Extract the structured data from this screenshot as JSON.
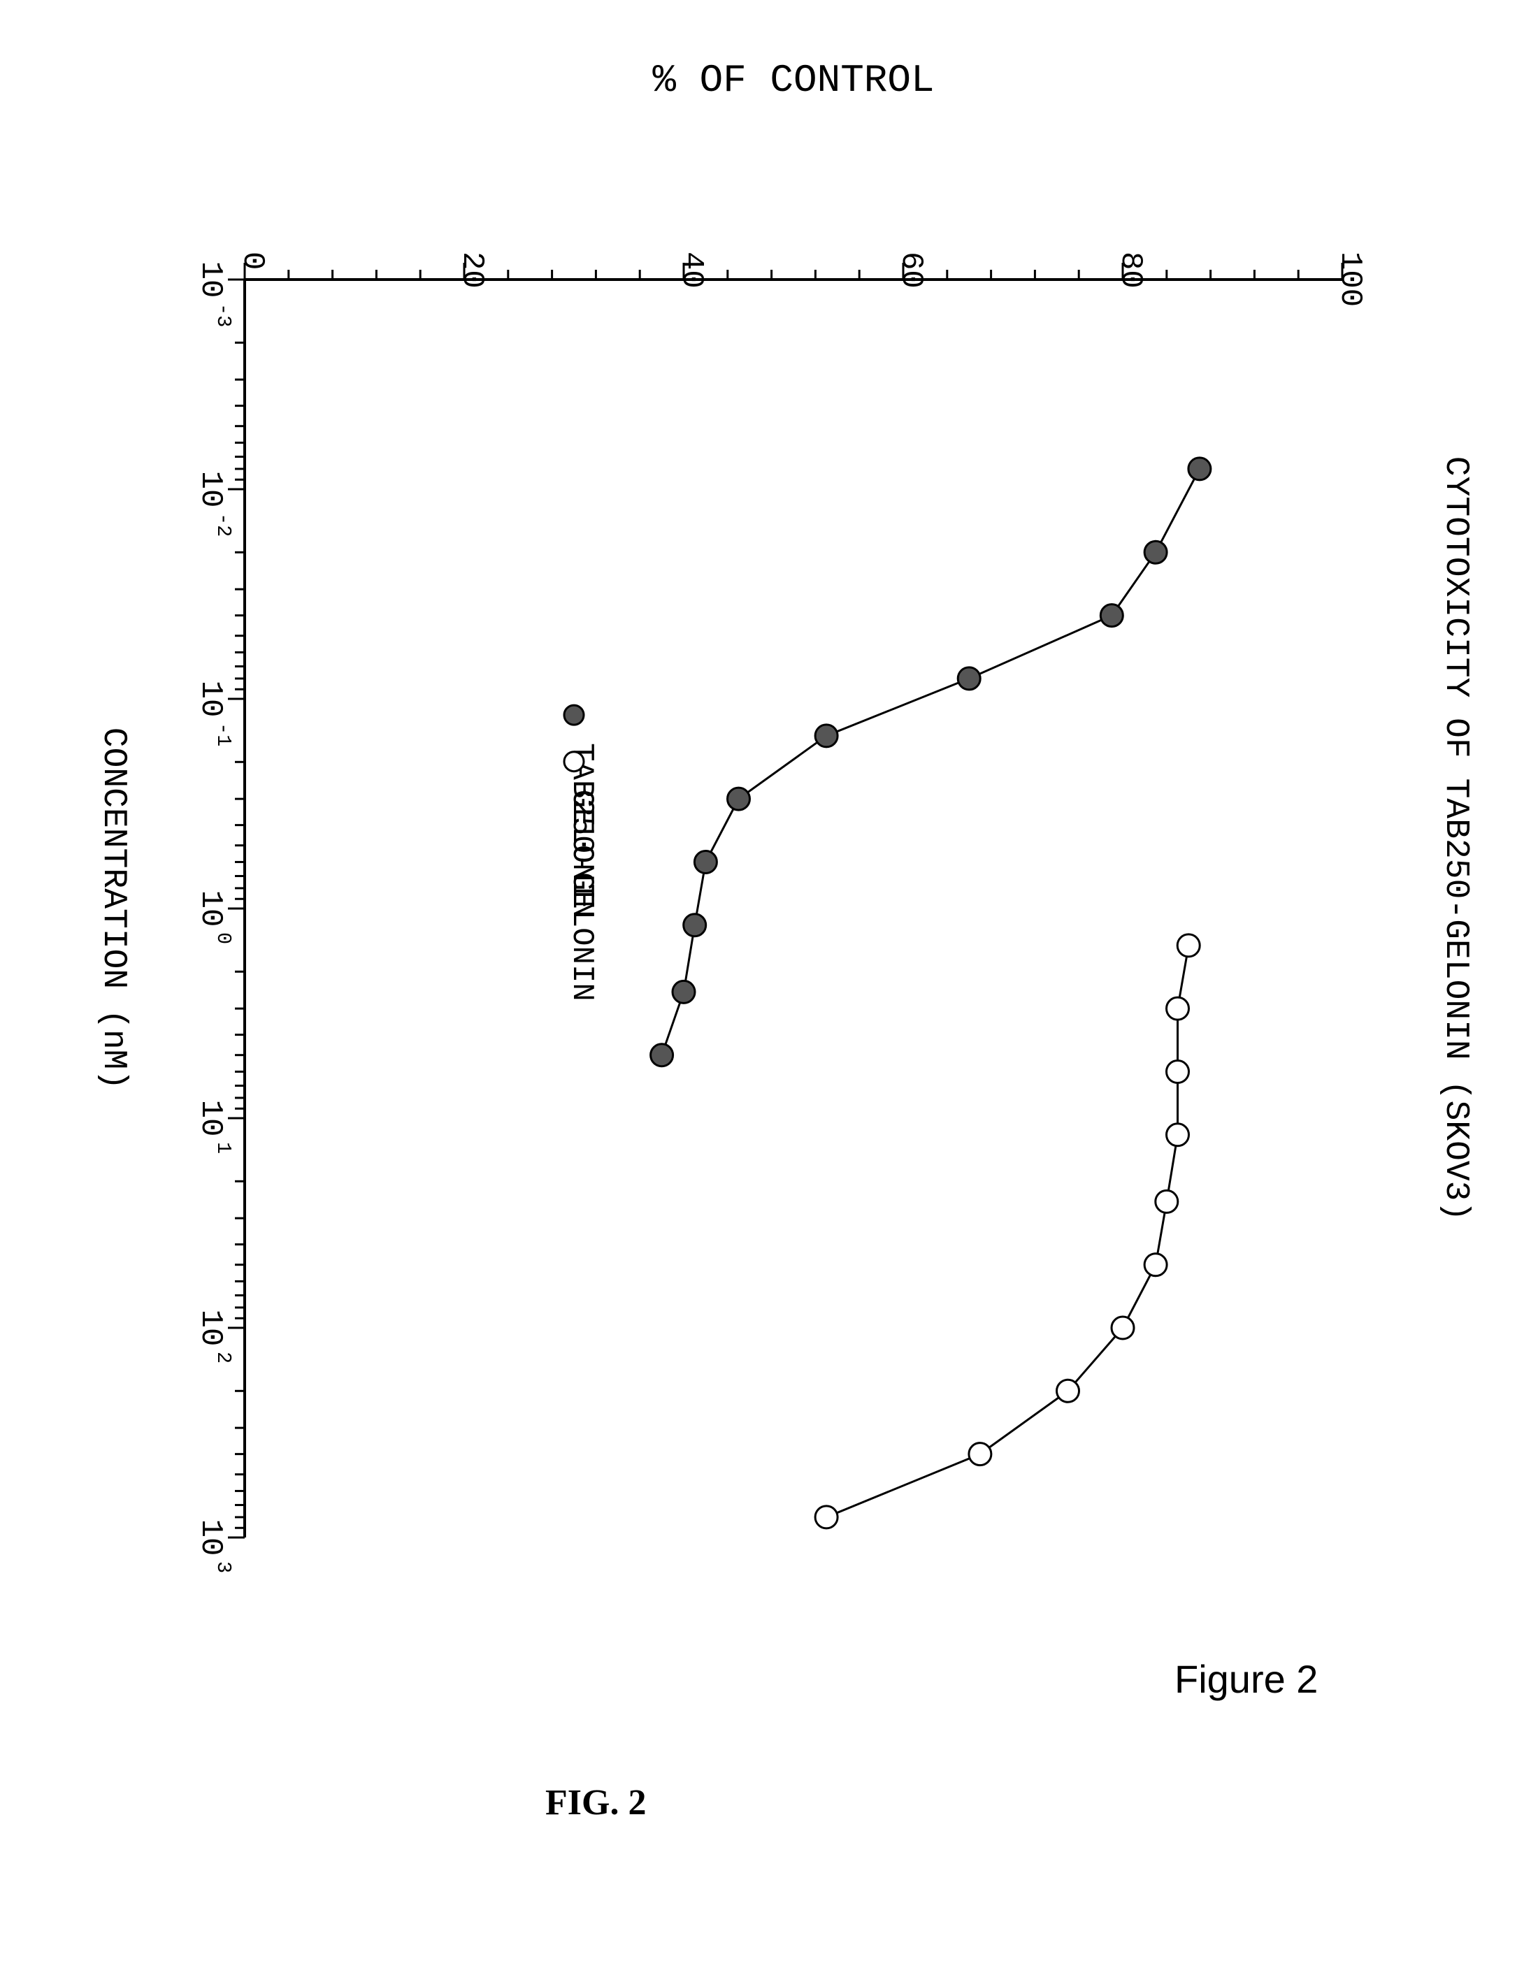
{
  "figure": {
    "title": "CYTOTOXICITY OF TAB250-GELONIN (SKOV3)",
    "xlabel": "CONCENTRATION (nM)",
    "ylabel": "% OF CONTROL",
    "title_fontsize": 48,
    "label_fontsize": 48,
    "tick_fontsize": 44,
    "background_color": "#ffffff",
    "axis_color": "#000000",
    "grid_color": "#e0e0e0",
    "x_scale": "log",
    "xlim": [
      0.001,
      1000
    ],
    "ylim": [
      0,
      100
    ],
    "ytick_step": 20,
    "yticks": [
      0,
      20,
      40,
      60,
      80,
      100
    ],
    "xtick_labels": [
      "10-3",
      "10-2",
      "10-1",
      "100",
      "101",
      "102",
      "103"
    ],
    "xtick_exponents": [
      -3,
      -2,
      -1,
      0,
      1,
      2,
      3
    ],
    "legend": {
      "items": [
        {
          "label": "TAB250-GELONIN",
          "marker": "filled-circle",
          "marker_color": "#555555"
        },
        {
          "label": "GELONIN",
          "marker": "open-circle",
          "marker_color": "#ffffff"
        }
      ],
      "fontsize": 44
    },
    "series": [
      {
        "name": "TAB250-GELONIN",
        "marker": "filled-circle",
        "marker_size": 16,
        "marker_fill": "#555555",
        "line_color": "#000000",
        "line_width": 3,
        "x": [
          0.008,
          0.02,
          0.04,
          0.08,
          0.15,
          0.3,
          0.6,
          1.2,
          2.5,
          5
        ],
        "y": [
          87,
          83,
          79,
          66,
          53,
          45,
          42,
          41,
          40,
          38
        ]
      },
      {
        "name": "GELONIN",
        "marker": "open-circle",
        "marker_size": 16,
        "marker_fill": "#ffffff",
        "line_color": "#000000",
        "line_width": 3,
        "x": [
          1.5,
          3,
          6,
          12,
          25,
          50,
          100,
          200,
          400,
          800
        ],
        "y": [
          86,
          85,
          85,
          85,
          84,
          83,
          80,
          75,
          67,
          53
        ]
      }
    ],
    "caption_handwritten": "Figure 2",
    "caption_print": "FIG. 2",
    "caption_fontsize": 56,
    "line_widths": {
      "axis": 4,
      "series": 3,
      "tick_major": 3,
      "tick_minor": 2
    }
  }
}
